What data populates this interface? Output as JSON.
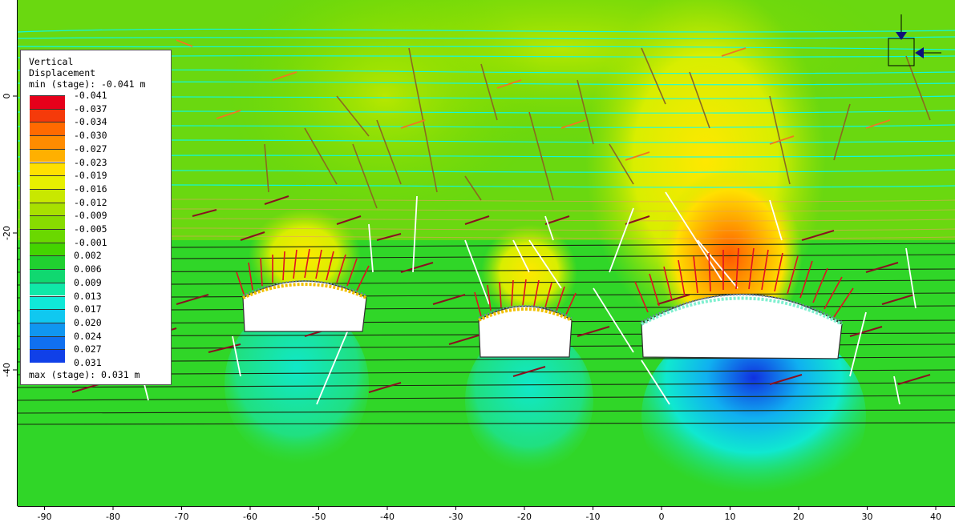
{
  "legend": {
    "title_line1": "Vertical",
    "title_line2": "Displacement",
    "min_text": "min (stage): -0.041 m",
    "max_text": "max (stage): 0.031 m",
    "levels": [
      "-0.041",
      "-0.037",
      "-0.034",
      "-0.030",
      "-0.027",
      "-0.023",
      "-0.019",
      "-0.016",
      "-0.012",
      "-0.009",
      "-0.005",
      "-0.001",
      "0.002",
      "0.006",
      "0.009",
      "0.013",
      "0.017",
      "0.020",
      "0.024",
      "0.027",
      "0.031"
    ],
    "colors": [
      "#e6001a",
      "#f53a0a",
      "#ff6a00",
      "#ff8c00",
      "#ffb000",
      "#ffe000",
      "#e8f000",
      "#c8e800",
      "#a8e000",
      "#88dc00",
      "#6ad800",
      "#44d400",
      "#20d030",
      "#10d870",
      "#10e8a8",
      "#10e8d8",
      "#10c8f0",
      "#1096f0",
      "#1070f0",
      "#1040e8",
      "#0020d8"
    ]
  },
  "x_axis": {
    "ticks": [
      "-90",
      "-80",
      "-70",
      "-60",
      "-50",
      "-40",
      "-30",
      "-20",
      "-10",
      "0",
      "10",
      "20",
      "30",
      "40"
    ]
  },
  "y_axis": {
    "ticks": [
      "0",
      "-20",
      "-40"
    ]
  },
  "colors": {
    "background_field": "#3ada20",
    "joint": "#00ffff",
    "bolt": "#e01020",
    "crack": "#ffffff",
    "liner_dark": "#303030"
  }
}
